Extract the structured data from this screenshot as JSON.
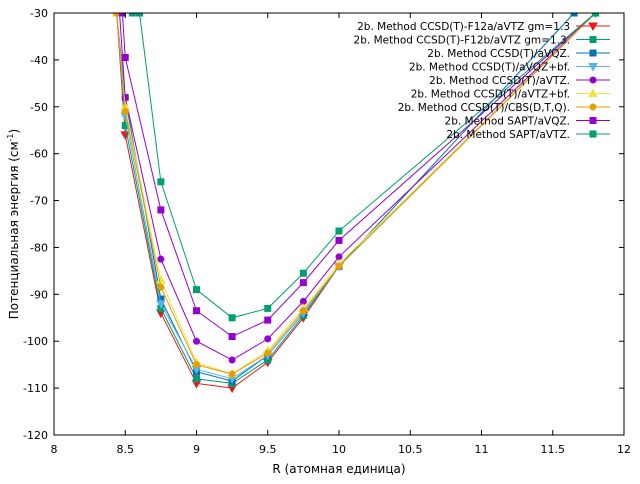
{
  "chart_data": {
    "type": "line",
    "xlabel": "R (атомная единица)",
    "ylabel_main": "Потенциальная энергия (см",
    "ylabel_sup": "-1",
    "ylabel_close": ")",
    "xlim": [
      8,
      12
    ],
    "ylim": [
      -120,
      -30
    ],
    "xticks": [
      8,
      8.5,
      9,
      9.5,
      10,
      10.5,
      11,
      11.5,
      12
    ],
    "xtick_labels": [
      "8",
      "8.5",
      "9",
      "9.5",
      "10",
      "10.5",
      "11",
      "11.5",
      "12"
    ],
    "yticks": [
      -120,
      -110,
      -100,
      -90,
      -80,
      -70,
      -60,
      -50,
      -40,
      -30
    ],
    "ytick_labels": [
      "-120",
      "-110",
      "-100",
      "-90",
      "-80",
      "-70",
      "-60",
      "-50",
      "-40",
      "-30"
    ],
    "legend_position": "top-right",
    "series": [
      {
        "name": "2b. Method CCSD(T)-F12a/aVTZ gm=1.3",
        "color": "#e41a1c",
        "marker": "triangle-down",
        "x": [
          8.44,
          8.5,
          8.75,
          9.0,
          9.25,
          9.5,
          9.75,
          10.0,
          11.8
        ],
        "y": [
          -30,
          -56,
          -94,
          -109,
          -110,
          -104.5,
          -95,
          -84,
          -30
        ]
      },
      {
        "name": "2b. Method CCSD(T)-F12b/aVTZ gm=1.3.",
        "color": "#009e73",
        "marker": "square",
        "x": [
          8.44,
          8.5,
          8.75,
          9.0,
          9.25,
          9.5,
          9.75,
          10.0,
          11.8
        ],
        "y": [
          -30,
          -54,
          -93,
          -108,
          -109,
          -104,
          -94.5,
          -84,
          -30
        ]
      },
      {
        "name": "2b. Method CCSD(T)/aVQZ.",
        "color": "#0072b2",
        "marker": "square",
        "x": [
          8.44,
          8.5,
          8.75,
          9.0,
          9.25,
          9.5,
          9.75,
          10.0,
          11.65
        ],
        "y": [
          -30,
          -48,
          -91,
          -106.5,
          -108.5,
          -103,
          -94,
          -84,
          -30
        ]
      },
      {
        "name": "2b. Method CCSD(T)/aVQZ+bf.",
        "color": "#56b4e9",
        "marker": "triangle-down",
        "x": [
          8.44,
          8.5,
          8.75,
          9.0,
          9.25,
          9.5,
          9.75,
          10.0,
          11.8
        ],
        "y": [
          -30,
          -52,
          -92,
          -106,
          -108,
          -103,
          -94,
          -84,
          -30
        ]
      },
      {
        "name": "2b. Method CCSD(T)/aVTZ.",
        "color": "#9400d3",
        "marker": "circle",
        "x": [
          8.46,
          8.5,
          8.75,
          9.0,
          9.25,
          9.5,
          9.75,
          10.0,
          11.8
        ],
        "y": [
          -30,
          -48,
          -82.5,
          -100,
          -104,
          -99.5,
          -91.5,
          -82,
          -30
        ]
      },
      {
        "name": "2b. Method CCSD(T)/aVTZ+bf.",
        "color": "#f0e442",
        "marker": "triangle-up",
        "x": [
          8.44,
          8.5,
          8.75,
          9.0,
          9.25,
          9.5,
          9.75,
          10.0,
          11.8
        ],
        "y": [
          -30,
          -50,
          -87,
          -104.5,
          -107,
          -102,
          -93,
          -83.5,
          -30
        ]
      },
      {
        "name": "2b. Method CCSD(T)/CBS(D,T,Q).",
        "color": "#e69f00",
        "marker": "circle",
        "x": [
          8.44,
          8.5,
          8.75,
          9.0,
          9.25,
          9.5,
          9.75,
          10.0,
          11.8
        ],
        "y": [
          -30,
          -51,
          -88.5,
          -105,
          -107,
          -102.5,
          -93.5,
          -84,
          -30
        ]
      },
      {
        "name": "2b. Method SAPT/aVQZ.",
        "color": "#9400d3",
        "marker": "square",
        "x": [
          8.48,
          8.5,
          8.75,
          9.0,
          9.25,
          9.5,
          9.75,
          10.0,
          11.8
        ],
        "y": [
          -30,
          -39.5,
          -72,
          -93.5,
          -99,
          -95.5,
          -87.5,
          -78.5,
          -30
        ]
      },
      {
        "name": "2b. Method SAPT/aVTZ.",
        "color": "#009e73",
        "marker": "square",
        "x": [
          8.55,
          8.6,
          8.75,
          9.0,
          9.25,
          9.5,
          9.75,
          10.0,
          11.8
        ],
        "y": [
          -30,
          -30,
          -66,
          -89,
          -95,
          -93,
          -85.5,
          -76.5,
          -30
        ]
      }
    ]
  }
}
